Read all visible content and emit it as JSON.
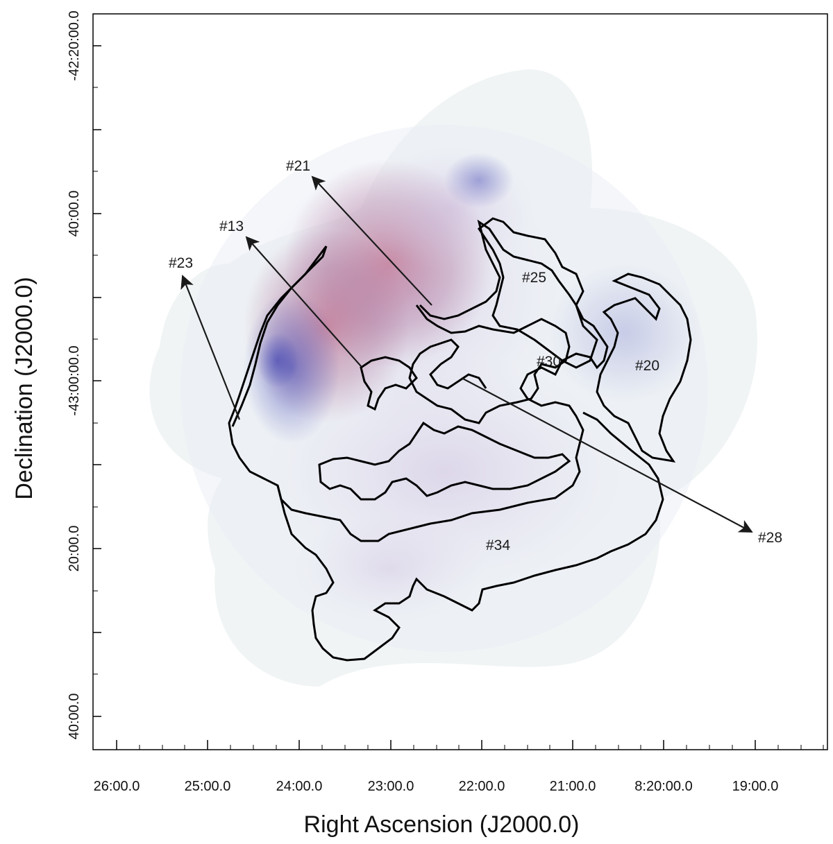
{
  "axes": {
    "xlabel": "Right Ascension (J2000.0)",
    "ylabel": "Declination (J2000.0)",
    "x_ticks": [
      "26:00.0",
      "25:00.0",
      "24:00.0",
      "23:00.0",
      "22:00.0",
      "21:00.0",
      "8:20:00.0",
      "19:00.0"
    ],
    "y_ticks": [
      "-42:20:00.0",
      "40:00.0",
      "-43:00:00.0",
      "20:00.0",
      "40:00.0"
    ]
  },
  "regions": [
    "#25",
    "#30",
    "#20",
    "#34"
  ],
  "arrows": [
    "#21",
    "#13",
    "#23",
    "#28"
  ],
  "colors": {
    "emission_red": "#b44a6e",
    "emission_blue": "#3b3fb0",
    "contour": "#000000"
  }
}
